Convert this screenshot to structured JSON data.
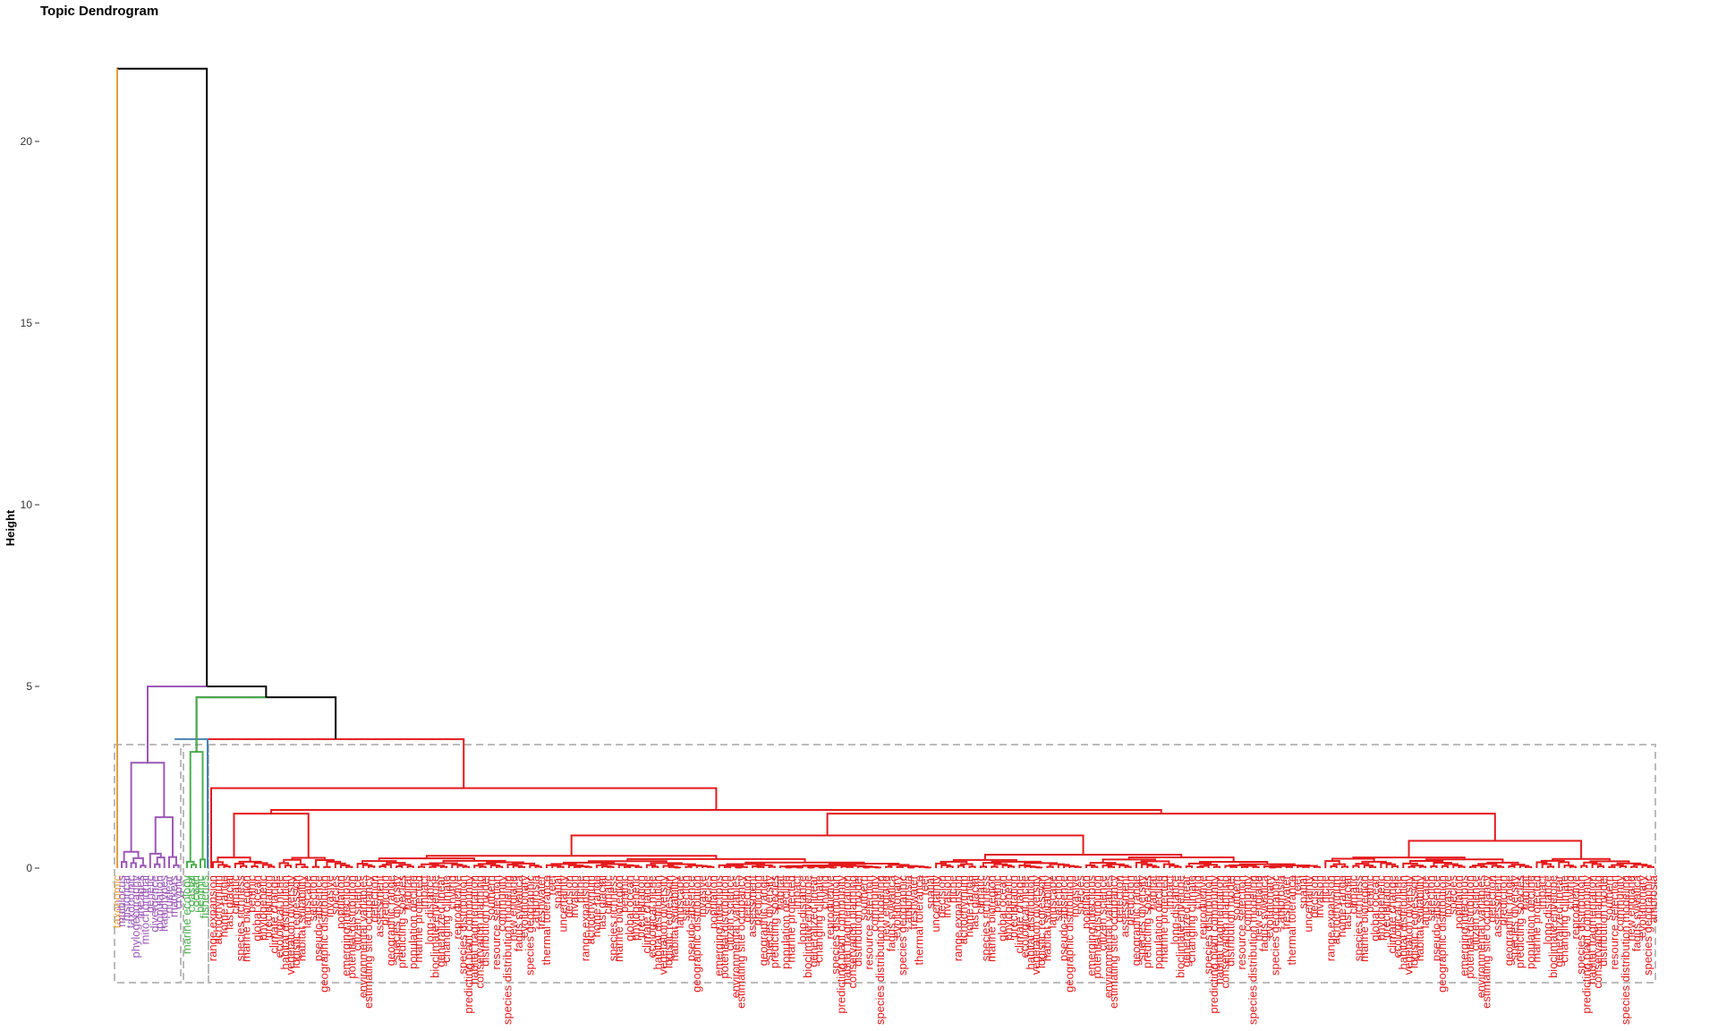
{
  "chart_data": {
    "type": "dendrogram",
    "title": "Topic Dendrogram",
    "xlabel": "",
    "ylabel": "Height",
    "ylim": [
      0,
      22
    ],
    "yticks": [
      0,
      5,
      10,
      15,
      20
    ],
    "grid": false,
    "legend": "none",
    "colors": {
      "orange": "#e69f3a",
      "purple": "#9b59b6",
      "green": "#4caf50",
      "blue": "#4682b4",
      "red": "#e41a1c",
      "root": "#000000",
      "box": "#bbbbbb"
    },
    "merges": {
      "root": 22.0,
      "orange_top": 22.0,
      "left_main": 5.0,
      "purple_top": 5.0,
      "purple_sub": [
        2.9,
        1.4
      ],
      "green_blue_red": 4.7,
      "green_top": 4.7,
      "green_sub": 3.2,
      "blue_red": 3.55,
      "red_top": 3.55,
      "red_sub": [
        2.2,
        1.6,
        1.5,
        0.9,
        0.75
      ]
    },
    "clusters": [
      {
        "color": "orange",
        "labels": [
          "taxonomic"
        ]
      },
      {
        "color": "purple",
        "labels": [
          "multilocus",
          "historical",
          "taxonomic",
          "phylogeography",
          "lineages",
          "mitochondrial",
          "genetic",
          "divergence",
          "population",
          "haplotypes",
          "nuclear",
          "markers",
          "cryptic"
        ]
      },
      {
        "color": "green",
        "labels": [
          "marine ecology",
          "coastal",
          "ocean",
          "benthic",
          "fisheries"
        ]
      },
      {
        "color": "red",
        "labels": [
          "range expansion",
          "achochytrium",
          "home range",
          "last glacial",
          "climatic",
          "species richness",
          "marine bioregion",
          "benthic",
          "global ocean",
          "phylogenetic",
          "precipitation",
          "climate change",
          "ecological niche",
          "habitat distribution",
          "vegetation diversity",
          "logistic regression",
          "habitat suitability",
          "landscape",
          "selection",
          "pseudo-absence",
          "geographic distribution",
          "invasive",
          "species",
          "population",
          "emerging infectious",
          "potential distribution",
          "citizen science",
          "environmental variables",
          "estimating site occupancy",
          "detection",
          "assessment",
          "prediction",
          "geographic range",
          "species diversity",
          "predicting species",
          "habitat",
          "population decline",
          "marine protected",
          "impact",
          "long-distance",
          "bioclimate envelope",
          "generalized linear",
          "changing climate",
          "chytrid",
          "reproductive",
          "species distribution",
          "predicting plant community",
          "habitat fragmentation",
          "conservation planning",
          "distribution model",
          "southern",
          "resource selection",
          "community",
          "species distribution modeling",
          "new england",
          "fagus sylvatica",
          "evolutionary",
          "species geographic",
          "ambrosia",
          "freshwater",
          "thermal tolerance",
          "reef",
          "spatial",
          "uncertainty",
          "decision",
          "invasion",
          "niche"
        ]
      }
    ]
  }
}
